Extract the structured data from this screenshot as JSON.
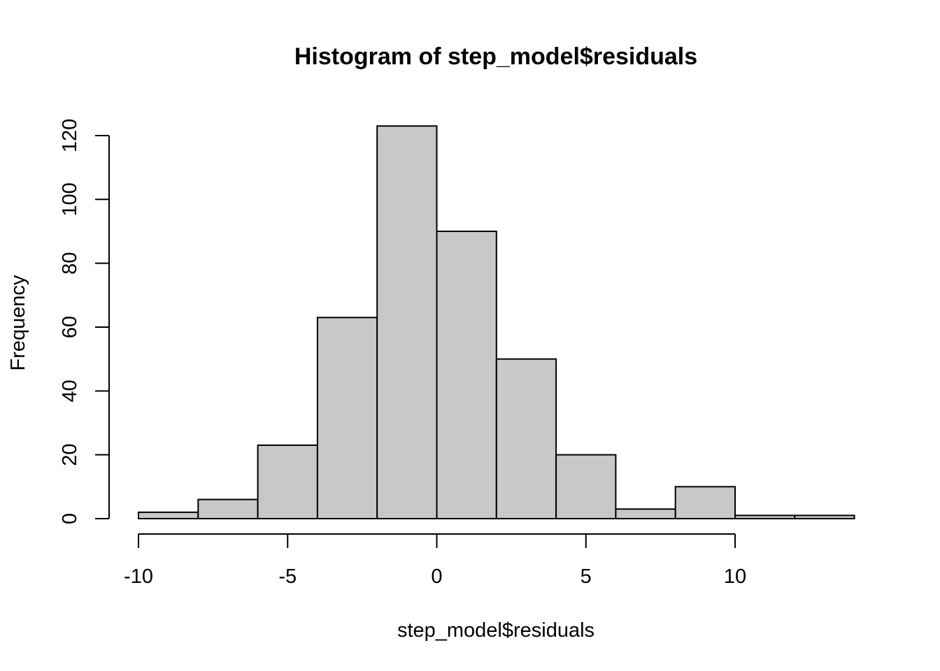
{
  "chart_data": {
    "type": "bar",
    "title": "Histogram of step_model$residuals",
    "xlabel": "step_model$residuals",
    "ylabel": "Frequency",
    "bin_edges": [
      -10,
      -8,
      -6,
      -4,
      -2,
      0,
      2,
      4,
      6,
      8,
      10,
      12,
      14
    ],
    "values": [
      2,
      6,
      23,
      63,
      123,
      90,
      50,
      20,
      3,
      10,
      1,
      1
    ],
    "xlim": [
      -10,
      14
    ],
    "ylim": [
      0,
      120
    ],
    "x_ticks": [
      -10,
      -5,
      0,
      5,
      10
    ],
    "x_tick_labels": [
      "-10",
      "-5",
      "0",
      "5",
      "10"
    ],
    "y_ticks": [
      0,
      20,
      40,
      60,
      80,
      100,
      120
    ],
    "y_tick_labels": [
      "0",
      "20",
      "40",
      "60",
      "80",
      "100",
      "120"
    ],
    "bar_color": "#c8c8c8",
    "grid": false
  }
}
